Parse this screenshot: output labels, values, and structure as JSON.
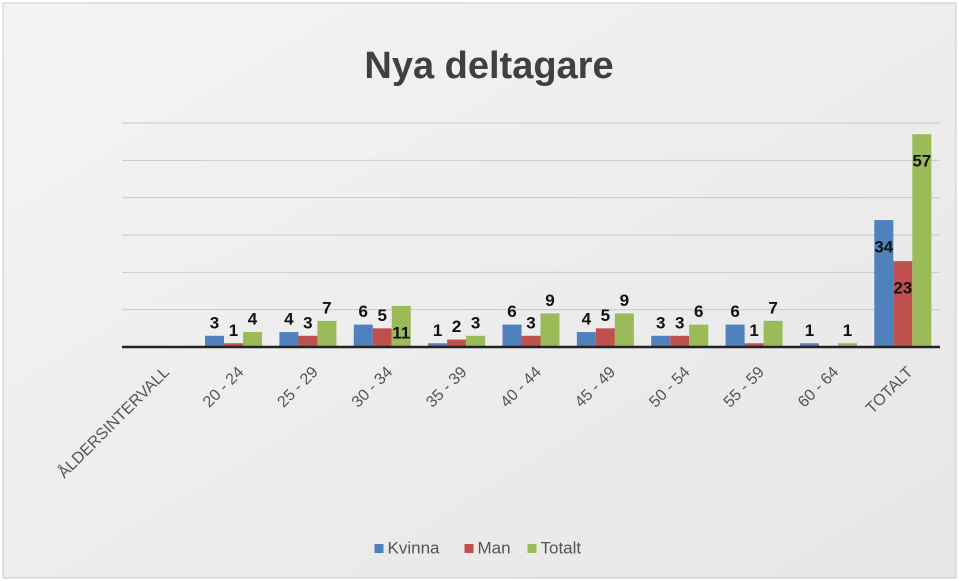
{
  "chart_data": {
    "type": "bar",
    "title": "Nya deltagare",
    "categories": [
      "ÅLDERSINTERVALL",
      "20 - 24",
      "25 - 29",
      "30 - 34",
      "35 - 39",
      "40 - 44",
      "45 - 49",
      "50 - 54",
      "55 - 59",
      "60 - 64",
      "TOTALT"
    ],
    "series": [
      {
        "name": "Kvinna",
        "color": "#4f81bd",
        "values": [
          null,
          3,
          4,
          6,
          1,
          6,
          4,
          3,
          6,
          1,
          34
        ]
      },
      {
        "name": "Man",
        "color": "#c0504d",
        "values": [
          null,
          1,
          3,
          5,
          2,
          3,
          5,
          3,
          1,
          null,
          23
        ]
      },
      {
        "name": "Totalt",
        "color": "#9bbb59",
        "values": [
          null,
          4,
          7,
          11,
          3,
          9,
          9,
          6,
          7,
          1,
          57
        ]
      }
    ],
    "ylim": [
      0,
      60
    ],
    "yticks": [
      0,
      10,
      20,
      30,
      40,
      50,
      60
    ],
    "grid": true,
    "legend": "bottom"
  }
}
